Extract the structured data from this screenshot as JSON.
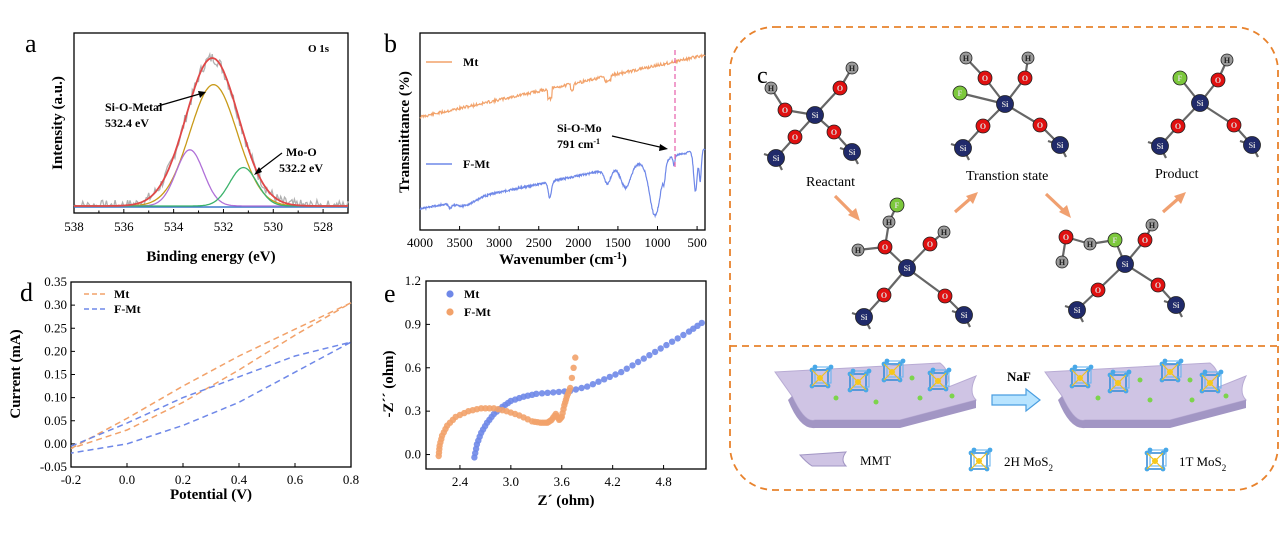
{
  "colors": {
    "raw": "#b0b0b0",
    "fit": "#e04848",
    "metal": "#c89a18",
    "mix": "#b070d8",
    "moo": "#3cb36c",
    "base": "#3a78c8",
    "mt": "#f2a26a",
    "fmt": "#6f88e8",
    "dash": "#f08030",
    "o": "#e01010",
    "si": "#202a6a",
    "h": "#9a9a9a",
    "f": "#7cc83c",
    "arrow": "#f0a070"
  },
  "panel_a": {
    "letter": "a",
    "corner": "O 1s",
    "xlabel": "Binding energy (eV)",
    "ylabel": "Intensity (a.u.)",
    "ann1_line1": "Si-O-Metal",
    "ann1_line2": "532.4 eV",
    "ann2_line1": "Mo-O",
    "ann2_line2": "532.2 eV",
    "xticks": [
      "538",
      "536",
      "534",
      "532",
      "530",
      "528"
    ]
  },
  "panel_b": {
    "letter": "b",
    "xlabel_main": "Wavenumber (cm",
    "xlabel_sup": "-1",
    "xlabel_end": ")",
    "ylabel": "Transmittance (%)",
    "mt_label": "Mt",
    "fmt_label": "F-Mt",
    "ann_line1": "Si-O-Mo",
    "ann_line2_main": "791 cm",
    "ann_line2_sup": "-1",
    "xticks": [
      "4000",
      "3500",
      "3000",
      "2500",
      "2000",
      "1500",
      "1000",
      "500"
    ]
  },
  "panel_d": {
    "letter": "d",
    "xlabel": "Potential (V)",
    "ylabel": "Current (mA)",
    "legend": [
      "Mt",
      "F-Mt"
    ],
    "xticks": [
      "-0.2",
      "0.0",
      "0.2",
      "0.4",
      "0.6",
      "0.8"
    ],
    "yticks": [
      "0.35",
      "0.30",
      "0.25",
      "0.20",
      "0.15",
      "0.10",
      "0.05",
      "0.00",
      "-0.05"
    ]
  },
  "panel_e": {
    "letter": "e",
    "xlabel": "Z´ (ohm)",
    "ylabel": "-Z´´ (ohm)",
    "legend": [
      "Mt",
      "F-Mt"
    ],
    "xticks": [
      "2.4",
      "3.0",
      "3.6",
      "4.2",
      "4.8"
    ],
    "yticks": [
      "1.2",
      "0.9",
      "0.6",
      "0.3",
      "0.0"
    ]
  },
  "panel_c": {
    "letter": "c",
    "reactant": "Reactant",
    "transition": "Transtion state",
    "product": "Product",
    "naf": "NaF",
    "legend_mmt": "MMT",
    "legend_2h": "2H MoS",
    "legend_1t": "1T MoS",
    "legend_sub": "2",
    "atom_si": "Si",
    "atom_o": "O",
    "atom_h": "H",
    "atom_f": "F"
  },
  "chart_data": [
    {
      "type": "line",
      "title": "O 1s",
      "xlabel": "Binding energy (eV)",
      "ylabel": "Intensity (a.u.)",
      "xlim": [
        538,
        527
      ],
      "x_reversed": true,
      "series": [
        {
          "center": 532.4,
          "amplitude": 0.82,
          "width": 0.95
        },
        {
          "center": 533.35,
          "amplitude": 0.38,
          "width": 0.55
        },
        {
          "center": 531.2,
          "amplitude": 0.26,
          "width": 0.55
        },
        {
          "center": 532.45,
          "amplitude": 1.0,
          "width": 1.05
        }
      ],
      "annotations": [
        "Si-O-Metal 532.4 eV",
        "Mo-O 532.2 eV"
      ]
    },
    {
      "type": "line",
      "xlabel": "Wavenumber (cm-1)",
      "ylabel": "Transmittance (%)",
      "xlim": [
        4000,
        400
      ],
      "series": [
        {
          "name": "Mt"
        },
        {
          "name": "F-Mt"
        }
      ],
      "marker_x": 791,
      "annotations": [
        "Si-O-Mo 791 cm-1"
      ]
    },
    {
      "type": "line",
      "xlabel": "Potential (V)",
      "ylabel": "Current (mA)",
      "xlim": [
        -0.2,
        0.8
      ],
      "ylim": [
        -0.05,
        0.35
      ],
      "series": [
        {
          "name": "Mt",
          "x": [
            -0.2,
            0.0,
            0.2,
            0.4,
            0.6,
            0.8,
            0.6,
            0.4,
            0.2,
            0.0,
            -0.2
          ],
          "y": [
            -0.01,
            0.055,
            0.125,
            0.19,
            0.248,
            0.305,
            0.235,
            0.16,
            0.09,
            0.03,
            -0.01
          ]
        },
        {
          "name": "F-Mt",
          "x": [
            -0.2,
            0.0,
            0.2,
            0.4,
            0.6,
            0.8,
            0.6,
            0.4,
            0.2,
            0.0,
            -0.2
          ],
          "y": [
            -0.005,
            0.045,
            0.1,
            0.145,
            0.19,
            0.22,
            0.155,
            0.09,
            0.04,
            0.0,
            -0.02
          ]
        }
      ]
    },
    {
      "type": "scatter",
      "xlabel": "Z´ (ohm)",
      "ylabel": "-Z´´ (ohm)",
      "xlim": [
        2.0,
        5.3
      ],
      "ylim": [
        -0.1,
        1.2
      ],
      "series": [
        {
          "name": "Mt",
          "x": [
            2.57,
            2.6,
            2.65,
            2.72,
            2.8,
            2.9,
            3.0,
            3.15,
            3.3,
            3.5,
            3.7,
            3.9,
            4.1,
            4.3,
            4.5,
            4.7,
            4.9,
            5.1,
            5.25
          ],
          "y": [
            -0.02,
            0.07,
            0.15,
            0.22,
            0.28,
            0.33,
            0.37,
            0.4,
            0.42,
            0.43,
            0.44,
            0.47,
            0.52,
            0.57,
            0.64,
            0.71,
            0.78,
            0.85,
            0.91
          ]
        },
        {
          "name": "F-Mt",
          "x": [
            2.15,
            2.16,
            2.19,
            2.25,
            2.35,
            2.5,
            2.65,
            2.8,
            2.95,
            3.1,
            3.25,
            3.35,
            3.43,
            3.48,
            3.53,
            3.57,
            3.6,
            3.63,
            3.66,
            3.7,
            3.76
          ],
          "y": [
            -0.01,
            0.06,
            0.13,
            0.2,
            0.26,
            0.3,
            0.32,
            0.32,
            0.3,
            0.27,
            0.23,
            0.22,
            0.22,
            0.24,
            0.28,
            0.24,
            0.26,
            0.34,
            0.4,
            0.46,
            0.67
          ]
        }
      ]
    }
  ]
}
